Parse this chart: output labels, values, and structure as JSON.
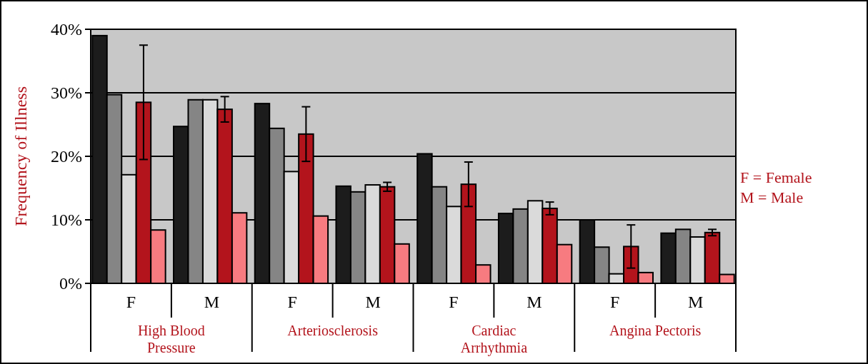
{
  "chart_data": {
    "type": "bar",
    "ylabel": "Frequency of Illness",
    "categories": [
      "F",
      "M",
      "F",
      "M",
      "F",
      "M",
      "F",
      "M"
    ],
    "series": [
      {
        "color": "#1c1c1c",
        "values": [
          39,
          24.7,
          28.3,
          15.3,
          20.4,
          11,
          10,
          7.9
        ]
      },
      {
        "color": "#858585",
        "values": [
          29.7,
          28.9,
          24.4,
          14.4,
          15.2,
          11.7,
          5.7,
          8.5
        ]
      },
      {
        "color": "#dadada",
        "values": [
          17.1,
          28.9,
          17.6,
          15.5,
          12.1,
          13,
          1.5,
          7.3
        ]
      },
      {
        "color": "#b3141c",
        "values": [
          28.5,
          27.4,
          23.5,
          15.2,
          15.6,
          11.8,
          5.8,
          8
        ],
        "errors": [
          9,
          2,
          4.3,
          0.7,
          3.5,
          1,
          3.4,
          0.5
        ]
      },
      {
        "color": "#f77b80",
        "values": [
          8.4,
          11.1,
          10.6,
          6.2,
          2.9,
          6.1,
          1.7,
          1.4
        ]
      }
    ],
    "ylim": [
      0,
      40
    ],
    "yticks": [
      {
        "value": 0,
        "label": "0%"
      },
      {
        "value": 10,
        "label": "10%"
      },
      {
        "value": 20,
        "label": "20%"
      },
      {
        "value": 30,
        "label": "30%"
      },
      {
        "value": 40,
        "label": "40%"
      }
    ],
    "grid": "y",
    "annotations": [
      "High Blood Pressure",
      "Arteriosclerosis",
      "Cardiac Arrhythmia",
      "Angina Pectoris",
      "F = Female",
      "M = Male"
    ]
  }
}
